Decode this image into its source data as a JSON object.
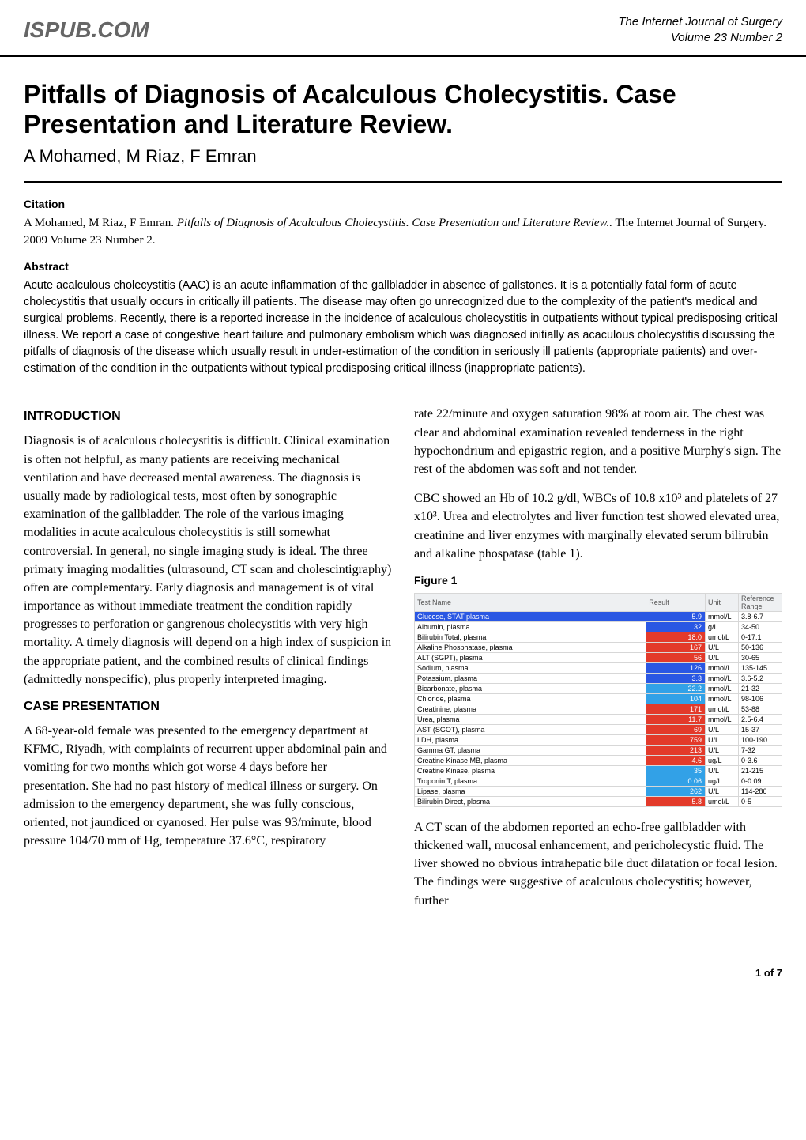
{
  "header": {
    "site": "ISPUB.COM",
    "journal": "The Internet Journal of Surgery",
    "volume": "Volume 23 Number 2"
  },
  "article": {
    "title": "Pitfalls of Diagnosis of Acalculous Cholecystitis. Case Presentation and Literature Review.",
    "authors": "A Mohamed, M Riaz, F Emran"
  },
  "citation": {
    "label": "Citation",
    "authors": "A Mohamed, M Riaz, F Emran.",
    "title_ital": "Pitfalls of Diagnosis of Acalculous Cholecystitis. Case Presentation and Literature Review..",
    "tail": "The Internet Journal of Surgery. 2009 Volume 23 Number 2."
  },
  "abstract": {
    "label": "Abstract",
    "text": "Acute acalculous cholecystitis (AAC) is an acute inflammation of the gallbladder in absence of gallstones. It is a potentially fatal form of acute cholecystitis that usually occurs in critically ill patients. The disease may often go unrecognized due to the complexity of the patient's medical and surgical problems. Recently, there is a reported increase in the incidence of acalculous cholecystitis in outpatients without typical predisposing critical illness. We report a case of congestive heart failure and pulmonary embolism which was diagnosed initially as acaculous cholecystitis discussing the pitfalls of diagnosis of the disease which usually result in under-estimation of the condition in seriously ill patients (appropriate patients) and over-estimation of the condition in the outpatients without typical predisposing critical illness (inappropriate patients)."
  },
  "sections": {
    "introduction": {
      "heading": "INTRODUCTION",
      "p1": "Diagnosis is of acalculous cholecystitis is difficult. Clinical examination is often not helpful, as many patients are receiving mechanical ventilation and have decreased mental awareness. The diagnosis is usually made by radiological tests, most often by sonographic examination of the gallbladder. The role of the various imaging modalities in acute acalculous cholecystitis is still somewhat controversial. In general, no single imaging study is ideal. The three primary imaging modalities (ultrasound, CT scan and cholescintigraphy) often are complementary. Early diagnosis and management is of vital importance as without immediate treatment the condition rapidly progresses to perforation or gangrenous cholecystitis with very high mortality. A timely diagnosis will depend on a high index of suspicion in the appropriate patient, and the combined results of clinical findings (admittedly nonspecific), plus properly interpreted imaging."
    },
    "case": {
      "heading": "CASE PRESENTATION",
      "p1": "A 68-year-old female was presented to the emergency department at KFMC, Riyadh, with complaints of recurrent upper abdominal pain and vomiting for two months which got worse 4 days before her presentation. She had no past history of medical illness or surgery. On admission to the emergency department, she was fully conscious, oriented, not jaundiced or cyanosed. Her pulse was 93/minute, blood pressure 104/70 mm of Hg, temperature 37.6°C, respiratory",
      "p2": "rate 22/minute and oxygen saturation 98% at room air. The chest was clear and abdominal examination revealed tenderness in the right hypochondrium and epigastric region, and a positive Murphy's sign. The rest of the abdomen was soft and not tender.",
      "p3": "CBC showed an Hb of 10.2 g/dl, WBCs of 10.8 x10³ and platelets of 27 x10³. Urea and electrolytes and liver function test showed elevated urea, creatinine and liver enzymes with marginally elevated serum bilirubin and alkaline phospatase (table 1).",
      "p4": "A CT scan of the abdomen reported an echo-free gallbladder with thickened wall, mucosal enhancement, and pericholecystic fluid. The liver showed no obvious intrahepatic bile duct dilatation or focal lesion. The findings were suggestive of acalculous cholecystitis; however, further"
    }
  },
  "figure": {
    "label": "Figure 1",
    "columns": [
      "Test Name",
      "Result",
      "Unit",
      "Reference Range"
    ],
    "rows": [
      {
        "name": "Glucose, STAT plasma",
        "result": "5.9",
        "flag": "name-low",
        "unit": "mmol/L",
        "ref": "3.8-6.7"
      },
      {
        "name": "Albumin, plasma",
        "result": "32",
        "flag": "low",
        "unit": "g/L",
        "ref": "34-50"
      },
      {
        "name": "Bilirubin Total, plasma",
        "result": "18.0",
        "flag": "high",
        "unit": "umol/L",
        "ref": "0-17.1"
      },
      {
        "name": "Alkaline Phosphatase, plasma",
        "result": "167",
        "flag": "high",
        "unit": "U/L",
        "ref": "50-136"
      },
      {
        "name": "ALT (SGPT), plasma",
        "result": "56",
        "flag": "high",
        "unit": "U/L",
        "ref": "30-65"
      },
      {
        "name": "Sodium, plasma",
        "result": "126",
        "flag": "low",
        "unit": "mmol/L",
        "ref": "135-145"
      },
      {
        "name": "Potassium, plasma",
        "result": "3.3",
        "flag": "low",
        "unit": "mmol/L",
        "ref": "3.6-5.2"
      },
      {
        "name": "Bicarbonate, plasma",
        "result": "22.2",
        "flag": "flag",
        "unit": "mmol/L",
        "ref": "21-32"
      },
      {
        "name": "Chloride, plasma",
        "result": "104",
        "flag": "flag",
        "unit": "mmol/L",
        "ref": "98-106"
      },
      {
        "name": "Creatinine, plasma",
        "result": "171",
        "flag": "high",
        "unit": "umol/L",
        "ref": "53-88"
      },
      {
        "name": "Urea, plasma",
        "result": "11.7",
        "flag": "high",
        "unit": "mmol/L",
        "ref": "2.5-6.4"
      },
      {
        "name": "AST (SGOT), plasma",
        "result": "69",
        "flag": "high",
        "unit": "U/L",
        "ref": "15-37"
      },
      {
        "name": "LDH, plasma",
        "result": "759",
        "flag": "high",
        "unit": "U/L",
        "ref": "100-190"
      },
      {
        "name": "Gamma GT, plasma",
        "result": "213",
        "flag": "high",
        "unit": "U/L",
        "ref": "7-32"
      },
      {
        "name": "Creatine Kinase MB, plasma",
        "result": "4.6",
        "flag": "high",
        "unit": "ug/L",
        "ref": "0-3.6"
      },
      {
        "name": "Creatine Kinase, plasma",
        "result": "35",
        "flag": "flag",
        "unit": "U/L",
        "ref": "21-215"
      },
      {
        "name": "Troponin T, plasma",
        "result": "0.06",
        "flag": "flag",
        "unit": "ug/L",
        "ref": "0-0.09"
      },
      {
        "name": "Lipase, plasma",
        "result": "262",
        "flag": "flag",
        "unit": "U/L",
        "ref": "114-286"
      },
      {
        "name": "Bilirubin Direct, plasma",
        "result": "5.8",
        "flag": "high",
        "unit": "umol/L",
        "ref": "0-5"
      }
    ],
    "flag_colors": {
      "high": "#e33a2a",
      "low": "#2a57e3",
      "flag": "#32a1e7"
    }
  },
  "footer": {
    "page": "1 of 7"
  }
}
